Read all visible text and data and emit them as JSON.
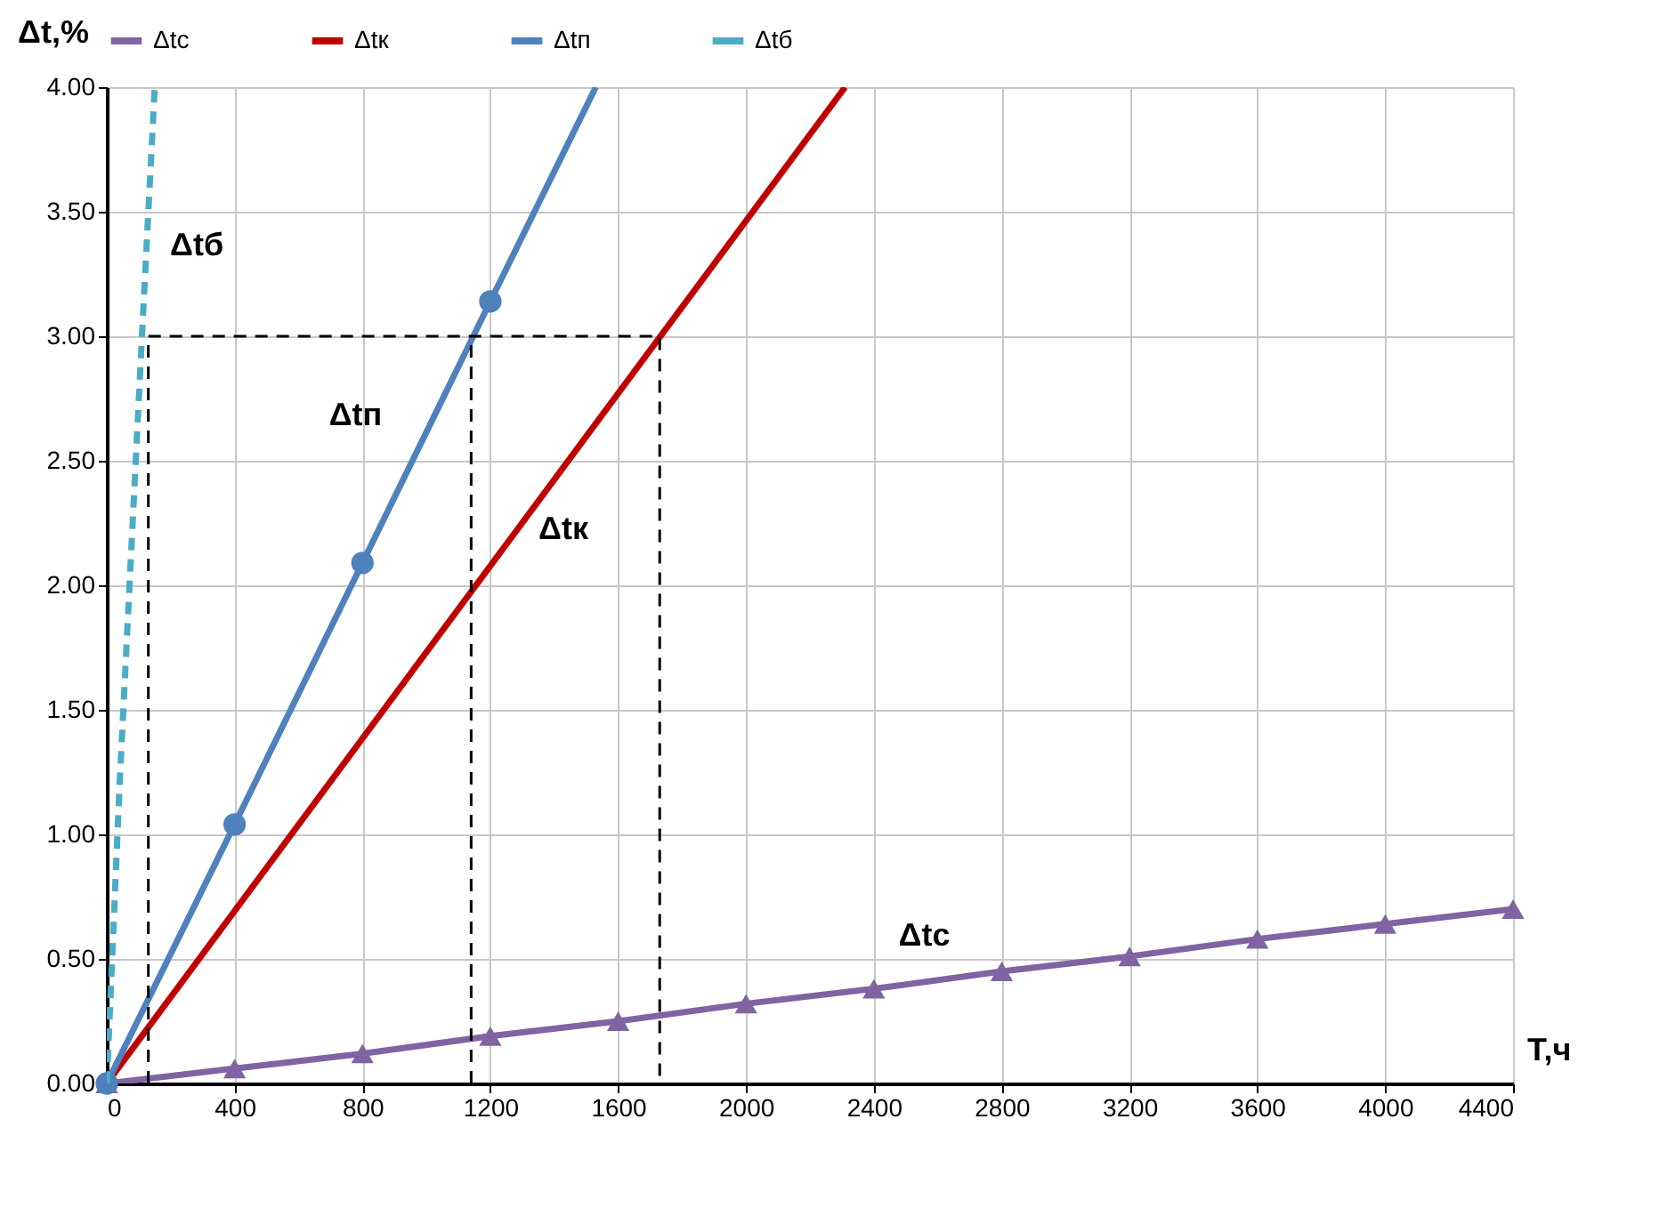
{
  "chart_data": {
    "type": "line",
    "xlabel": "Т,ч",
    "ylabel": "Δt,%",
    "xlim": [
      0,
      4400
    ],
    "ylim": [
      0,
      4.0
    ],
    "xticks": [
      0,
      400,
      800,
      1200,
      1600,
      2000,
      2400,
      2800,
      3200,
      3600,
      4000,
      4400
    ],
    "yticks": [
      {
        "value": 0,
        "label": "0.00"
      },
      {
        "value": 0.5,
        "label": "0.50"
      },
      {
        "value": 1,
        "label": "1.00"
      },
      {
        "value": 1.5,
        "label": "1.50"
      },
      {
        "value": 2,
        "label": "2.00"
      },
      {
        "value": 2.5,
        "label": "2.50"
      },
      {
        "value": 3,
        "label": "3.00"
      },
      {
        "value": 3.5,
        "label": "3.50"
      },
      {
        "value": 4,
        "label": "4.00"
      }
    ],
    "grid": true,
    "legend": "top",
    "series": [
      {
        "name": "Δtc",
        "color": "#8064a2",
        "marker": "triangle",
        "line_style": "solid",
        "x": [
          0,
          400,
          800,
          1200,
          1600,
          2000,
          2400,
          2800,
          3200,
          3600,
          4000,
          4400
        ],
        "values": [
          0,
          0.06,
          0.12,
          0.19,
          0.25,
          0.32,
          0.38,
          0.45,
          0.51,
          0.58,
          0.64,
          0.7
        ]
      },
      {
        "name": "Δtк",
        "color": "#c00000",
        "marker": "none",
        "line_style": "solid",
        "x": [
          0,
          2310
        ],
        "values": [
          0,
          4.0
        ]
      },
      {
        "name": "Δtп",
        "color": "#4f81bd",
        "marker": "circle",
        "line_style": "solid",
        "x": [
          0,
          400,
          800,
          1200
        ],
        "values": [
          0,
          1.04,
          2.09,
          3.14
        ]
      },
      {
        "color": "#4f81bd",
        "marker": "none",
        "line_style": "solid",
        "x": [
          1200,
          1530
        ],
        "values": [
          3.14,
          4.0
        ]
      },
      {
        "name": "Δtб",
        "color": "#4bacc6",
        "marker": "none",
        "line_style": "dashed",
        "x": [
          0,
          40,
          110,
          150
        ],
        "values": [
          0,
          1.2,
          3.0,
          4.0
        ]
      },
      {
        "color": "#000000",
        "marker": "none",
        "line_style": "dashed",
        "x": [
          130,
          130,
          1730,
          1730
        ],
        "values": [
          0,
          3.0,
          3.0,
          0
        ]
      },
      {
        "color": "#000000",
        "marker": "none",
        "line_style": "dashed",
        "x": [
          1140,
          1140
        ],
        "values": [
          0,
          3.0
        ]
      }
    ],
    "annotations": [
      "Δtб",
      "Δtп",
      "Δtк",
      "Δtc"
    ]
  }
}
